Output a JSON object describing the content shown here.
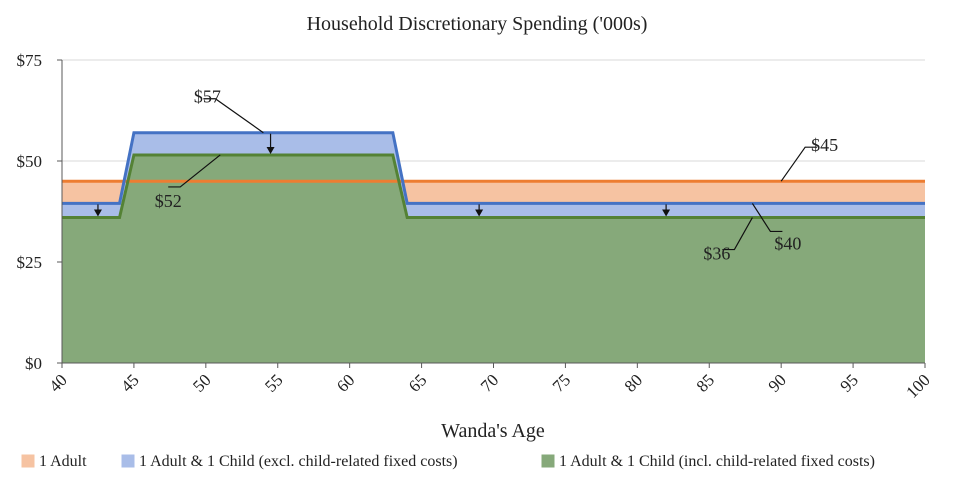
{
  "chart_data": {
    "type": "area",
    "title": "Household Discretionary Spending ('000s)",
    "xlabel": "Wanda's Age",
    "ylabel": "",
    "xlim": [
      40,
      100
    ],
    "ylim": [
      0,
      75
    ],
    "x_ticks": [
      "40",
      "45",
      "50",
      "55",
      "60",
      "65",
      "70",
      "75",
      "80",
      "85",
      "90",
      "95",
      "100"
    ],
    "y_ticks": [
      "$0",
      "$25",
      "$50",
      "$75"
    ],
    "grid": "horizontal",
    "legend_position": "bottom",
    "series": [
      {
        "name": "1 Adult",
        "fill": "#f6c3a2",
        "stroke": "#ed7d31",
        "points": [
          [
            40,
            45
          ],
          [
            100,
            45
          ]
        ]
      },
      {
        "name": "1 Adult & 1 Child (excl. child-related fixed costs)",
        "fill": "#a9bde8",
        "stroke": "#4472c4",
        "points": [
          [
            40,
            39.5
          ],
          [
            44,
            39.5
          ],
          [
            45,
            57
          ],
          [
            63,
            57
          ],
          [
            64,
            39.5
          ],
          [
            100,
            39.5
          ]
        ]
      },
      {
        "name": "1 Adult & 1 Child (incl. child-related fixed costs)",
        "fill": "#86a97a",
        "stroke": "#548235",
        "points": [
          [
            40,
            36
          ],
          [
            44,
            36
          ],
          [
            45,
            51.5
          ],
          [
            63,
            51.5
          ],
          [
            64,
            36
          ],
          [
            100,
            36
          ]
        ]
      }
    ],
    "annotations": [
      {
        "text": "$57",
        "x": 54,
        "y": 57
      },
      {
        "text": "$52",
        "x": 51,
        "y": 51.5
      },
      {
        "text": "$45",
        "x": 90,
        "y": 45
      },
      {
        "text": "$40",
        "x": 88,
        "y": 39.5
      },
      {
        "text": "$36",
        "x": 88,
        "y": 36
      }
    ],
    "down_arrows": [
      {
        "x": 42.5,
        "y_from": 39.5,
        "y_to": 36
      },
      {
        "x": 54.5,
        "y_from": 57,
        "y_to": 51.5
      },
      {
        "x": 69,
        "y_from": 39.5,
        "y_to": 36
      },
      {
        "x": 82,
        "y_from": 39.5,
        "y_to": 36
      }
    ]
  }
}
